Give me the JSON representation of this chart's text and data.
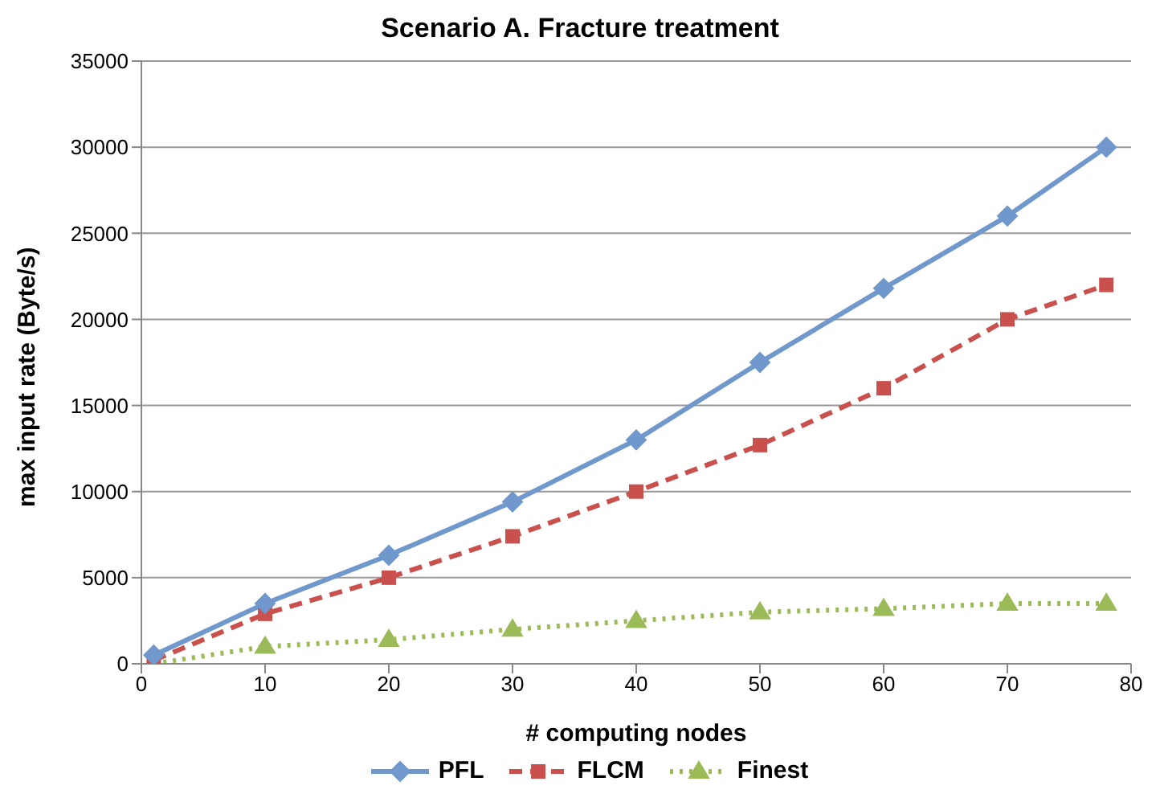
{
  "chart_data": {
    "type": "line",
    "title": "Scenario A. Fracture treatment",
    "xlabel": "# computing nodes",
    "ylabel": "max input rate (Byte/s)",
    "x": [
      1,
      10,
      20,
      30,
      40,
      50,
      60,
      70,
      78
    ],
    "series": [
      {
        "name": "PFL",
        "color": "#7098cc",
        "marker": "diamond",
        "line_style": "solid",
        "values": [
          500,
          3500,
          6300,
          9400,
          13000,
          17500,
          21800,
          26000,
          30000
        ]
      },
      {
        "name": "FLCM",
        "color": "#c9504d",
        "marker": "square",
        "line_style": "dashed",
        "values": [
          200,
          2900,
          5000,
          7400,
          10000,
          12700,
          16000,
          20000,
          22000
        ]
      },
      {
        "name": "Finest",
        "color": "#9bbb59",
        "marker": "triangle",
        "line_style": "dotted",
        "values": [
          0,
          1000,
          1400,
          2000,
          2500,
          3000,
          3200,
          3500,
          3500
        ]
      }
    ],
    "xlim": [
      0,
      80
    ],
    "xticks": [
      0,
      10,
      20,
      30,
      40,
      50,
      60,
      70,
      80
    ],
    "ylim": [
      0,
      35000
    ],
    "yticks": [
      0,
      5000,
      10000,
      15000,
      20000,
      25000,
      30000,
      35000
    ],
    "grid": "y",
    "legend": "bottom"
  }
}
